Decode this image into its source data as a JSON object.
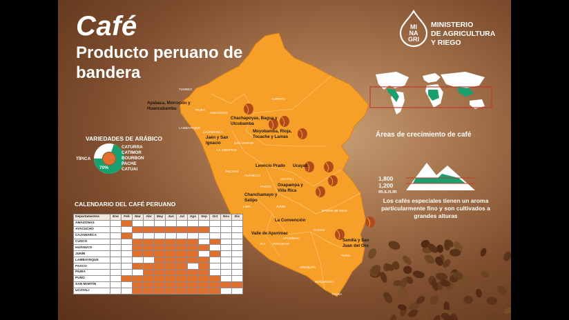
{
  "header": {
    "title": "Café",
    "subtitle": "Producto peruano de bandera"
  },
  "logo": {
    "mark_top": "MI",
    "mark_mid": "NA",
    "mark_bot": "GRI",
    "org_line1": "MINISTERIO",
    "org_line2": "DE AGRICULTURA",
    "org_line3": "Y RIEGO"
  },
  "varieties": {
    "heading": "VARIEDADES DE ARÁBICO",
    "main_label": "TÍPICA",
    "main_pct": "70%",
    "others": [
      "CATURRA",
      "CATIMOR",
      "BOURBON",
      "PACHE",
      "CATUAI"
    ],
    "colors": {
      "main": "#1aa06f",
      "others": "#ffffff",
      "hole": "#e0702d"
    }
  },
  "calendar": {
    "heading": "CALENDARIO DEL CAFÉ PERUANO",
    "col_header": "Departamentos",
    "months": [
      "Ene",
      "Feb",
      "Mar",
      "Abr",
      "May",
      "Jun",
      "Jul",
      "Ago",
      "Sep",
      "Oct",
      "Nov",
      "Dic"
    ],
    "rows": [
      {
        "name": "AMAZONAS",
        "months": [
          0,
          1,
          0,
          0,
          0,
          0,
          0,
          0,
          0,
          0,
          0,
          0
        ]
      },
      {
        "name": "AYACUCHO",
        "months": [
          0,
          0,
          1,
          1,
          1,
          1,
          1,
          1,
          1,
          0,
          0,
          0
        ]
      },
      {
        "name": "CAJAMARCA",
        "months": [
          0,
          1,
          0,
          0,
          0,
          0,
          0,
          0,
          0,
          0,
          0,
          0
        ]
      },
      {
        "name": "CUSCO",
        "months": [
          0,
          0,
          1,
          1,
          1,
          1,
          1,
          1,
          0,
          1,
          0,
          0
        ]
      },
      {
        "name": "HUÁNUCO",
        "months": [
          0,
          0,
          1,
          1,
          1,
          1,
          1,
          1,
          1,
          0,
          0,
          0
        ]
      },
      {
        "name": "JUNÍN",
        "months": [
          0,
          0,
          1,
          1,
          1,
          1,
          1,
          1,
          0,
          1,
          0,
          0
        ]
      },
      {
        "name": "LAMBAYEQUE",
        "months": [
          0,
          0,
          0,
          0,
          1,
          1,
          1,
          1,
          1,
          0,
          0,
          0
        ]
      },
      {
        "name": "PASCO",
        "months": [
          0,
          0,
          1,
          1,
          1,
          1,
          1,
          0,
          1,
          0,
          0,
          0
        ]
      },
      {
        "name": "PIURA",
        "months": [
          0,
          0,
          0,
          1,
          1,
          1,
          1,
          1,
          1,
          0,
          0,
          0
        ]
      },
      {
        "name": "PUNO",
        "months": [
          0,
          1,
          1,
          1,
          1,
          1,
          1,
          1,
          1,
          1,
          0,
          0
        ]
      },
      {
        "name": "SAN MARTÍN",
        "months": [
          0,
          0,
          1,
          1,
          1,
          1,
          1,
          1,
          1,
          1,
          1,
          1
        ]
      },
      {
        "name": "UCAYALI",
        "months": [
          0,
          0,
          1,
          1,
          1,
          1,
          1,
          1,
          1,
          1,
          0,
          0
        ]
      }
    ],
    "on_color": "#e0702d"
  },
  "map": {
    "fill_color": "#f6a02a",
    "callouts": [
      "Ayabaca, Morropón y Huancabamba",
      "Chachapoyas, Bagua y Utcubamba",
      "Moyobamba, Rioja, Tocache y Lamas",
      "Jaén y San Ignacio",
      "Leoncio Prado",
      "Ucayali",
      "Oxapampa y Villa Rica",
      "Chanchamayo y Satipo",
      "La Convención",
      "Valle de Apurímac",
      "Sandia y San Juan del Oro"
    ],
    "regions": [
      "TUMBES",
      "PIURA",
      "LAMBAYEQUE",
      "CAJAMARCA",
      "AMAZONAS",
      "LORETO",
      "SAN MARTÍN",
      "LA LIBERTAD",
      "ÁNCASH",
      "HUÁNUCO",
      "UCAYALI",
      "PASCO",
      "LIMA",
      "JUNÍN",
      "MADRE DE DIOS",
      "CUSCO",
      "AYACUCHO",
      "ICA",
      "APURÍMAC",
      "PUNO",
      "AREQUIPA",
      "MOQUEGUA",
      "TACNA"
    ]
  },
  "world": {
    "caption": "Áreas de crecimiento de café"
  },
  "altitude": {
    "value_high": "1,800",
    "value_low": "1,200",
    "unit": "m.s.n.m",
    "caption": "Los cafés especiales tienen un aroma particularmente fino y son cultivados a grandes alturas"
  }
}
